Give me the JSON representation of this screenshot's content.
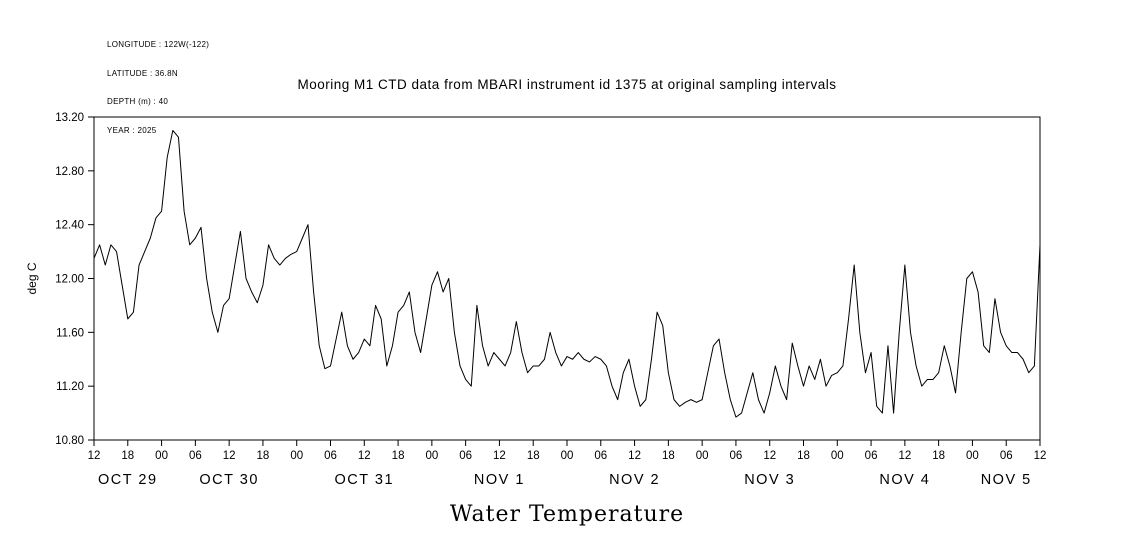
{
  "header": {
    "meta_lines": [
      "LONGITUDE : 122W(-122)",
      "LATITUDE : 36.8N",
      "DEPTH (m) : 40",
      "YEAR : 2025"
    ],
    "title": "Mooring M1 CTD data from MBARI instrument id 1375 at original sampling intervals"
  },
  "footer": {
    "caption": "Water Temperature"
  },
  "chart_data": {
    "type": "line",
    "title": "Mooring M1 CTD data from MBARI instrument id 1375 at original sampling intervals",
    "ylabel": "deg C",
    "xlabel": "Water Temperature",
    "ylim": [
      10.8,
      13.2
    ],
    "ytick_step": 0.4,
    "ytick_labels": [
      "10.80",
      "11.20",
      "11.60",
      "12.00",
      "12.40",
      "12.80",
      "13.20"
    ],
    "x_hours_range": [
      0,
      168
    ],
    "xtick_interval_hours": 6,
    "xtick_time_labels": [
      "12",
      "18",
      "00",
      "06",
      "12",
      "18",
      "00",
      "06",
      "12",
      "18",
      "00",
      "06",
      "12",
      "18",
      "00",
      "06",
      "12",
      "18",
      "00",
      "06",
      "12",
      "18",
      "00",
      "06",
      "12",
      "18",
      "00",
      "06",
      "12"
    ],
    "date_labels": [
      {
        "label": "OCT 29",
        "center_hour": 6
      },
      {
        "label": "OCT 30",
        "center_hour": 24
      },
      {
        "label": "OCT 31",
        "center_hour": 48
      },
      {
        "label": "NOV 1",
        "center_hour": 72
      },
      {
        "label": "NOV 2",
        "center_hour": 96
      },
      {
        "label": "NOV 3",
        "center_hour": 120
      },
      {
        "label": "NOV 4",
        "center_hour": 144
      },
      {
        "label": "NOV 5",
        "center_hour": 162
      }
    ],
    "grid": false,
    "legend": "none",
    "line_color": "#000000",
    "background_color": "#ffffff",
    "series": [
      {
        "name": "water_temperature_degC",
        "start_axis_label": "OCT 29 12",
        "sample_interval_hours": 1,
        "values": [
          12.15,
          12.25,
          12.1,
          12.25,
          12.2,
          11.95,
          11.7,
          11.75,
          12.1,
          12.2,
          12.3,
          12.45,
          12.5,
          12.9,
          13.1,
          13.05,
          12.5,
          12.25,
          12.3,
          12.38,
          12.0,
          11.75,
          11.6,
          11.8,
          11.85,
          12.1,
          12.35,
          12.0,
          11.9,
          11.82,
          11.95,
          12.25,
          12.15,
          12.1,
          12.15,
          12.18,
          12.2,
          12.3,
          12.4,
          11.9,
          11.5,
          11.33,
          11.35,
          11.55,
          11.75,
          11.5,
          11.4,
          11.45,
          11.55,
          11.5,
          11.8,
          11.7,
          11.35,
          11.5,
          11.75,
          11.8,
          11.9,
          11.6,
          11.45,
          11.7,
          11.95,
          12.05,
          11.9,
          12.0,
          11.6,
          11.35,
          11.25,
          11.2,
          11.8,
          11.5,
          11.35,
          11.45,
          11.4,
          11.35,
          11.45,
          11.68,
          11.45,
          11.3,
          11.35,
          11.35,
          11.4,
          11.6,
          11.45,
          11.35,
          11.42,
          11.4,
          11.45,
          11.4,
          11.38,
          11.42,
          11.4,
          11.35,
          11.2,
          11.1,
          11.3,
          11.4,
          11.2,
          11.05,
          11.1,
          11.4,
          11.75,
          11.65,
          11.3,
          11.1,
          11.05,
          11.08,
          11.1,
          11.08,
          11.1,
          11.3,
          11.5,
          11.55,
          11.3,
          11.1,
          10.97,
          11.0,
          11.15,
          11.3,
          11.1,
          11.0,
          11.15,
          11.35,
          11.2,
          11.1,
          11.52,
          11.35,
          11.2,
          11.35,
          11.25,
          11.4,
          11.2,
          11.28,
          11.3,
          11.35,
          11.7,
          12.1,
          11.6,
          11.3,
          11.45,
          11.05,
          11.0,
          11.5,
          11.0,
          11.6,
          12.1,
          11.6,
          11.35,
          11.2,
          11.25,
          11.25,
          11.3,
          11.5,
          11.35,
          11.15,
          11.6,
          12.0,
          12.05,
          11.9,
          11.5,
          11.45,
          11.85,
          11.6,
          11.5,
          11.45,
          11.45,
          11.4,
          11.3,
          11.35,
          12.25
        ]
      }
    ]
  }
}
